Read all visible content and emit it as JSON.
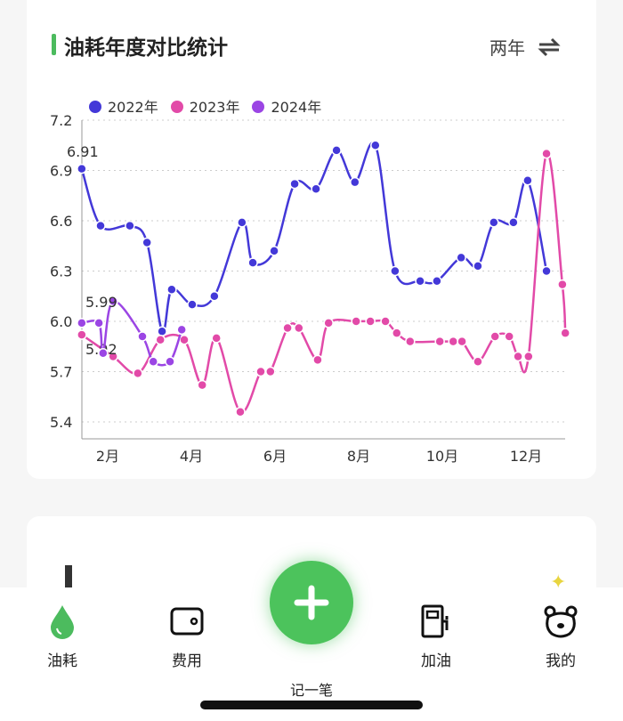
{
  "header": {
    "title": "油耗年度对比统计",
    "range_label": "两年",
    "swap_icon": "swap-icon"
  },
  "chart_data": {
    "type": "line",
    "title": "油耗年度对比统计",
    "xlabel": "",
    "ylabel": "",
    "ylim": [
      5.4,
      7.2
    ],
    "yticks": [
      "5.4",
      "5.7",
      "6.0",
      "6.3",
      "6.6",
      "6.9",
      "7.2"
    ],
    "xlim": [
      1.38,
      13.0
    ],
    "xticks": [
      {
        "m": 2,
        "label": "2月"
      },
      {
        "m": 4,
        "label": "4月"
      },
      {
        "m": 6,
        "label": "6月"
      },
      {
        "m": 8,
        "label": "8月"
      },
      {
        "m": 10,
        "label": "10月"
      },
      {
        "m": 12,
        "label": "12月"
      }
    ],
    "grid": true,
    "legend_position": "top-left",
    "series": [
      {
        "name": "2022年",
        "color": "#4338d8",
        "first_label": "6.91",
        "x": [
          1.38,
          1.83,
          2.53,
          2.94,
          3.3,
          3.53,
          4.02,
          4.55,
          5.21,
          5.47,
          5.98,
          6.47,
          6.98,
          7.47,
          7.91,
          8.4,
          8.87,
          9.47,
          9.87,
          10.45,
          10.85,
          11.23,
          11.7,
          12.04,
          12.49
        ],
        "y": [
          6.91,
          6.57,
          6.57,
          6.47,
          5.94,
          6.19,
          6.1,
          6.15,
          6.59,
          6.35,
          6.42,
          6.82,
          6.79,
          7.02,
          6.83,
          7.05,
          6.3,
          6.24,
          6.24,
          6.38,
          6.33,
          6.59,
          6.59,
          6.84,
          6.3
        ]
      },
      {
        "name": "2023年",
        "color": "#e24aa8",
        "first_label": "5.92",
        "x": [
          1.38,
          2.13,
          2.72,
          3.26,
          3.83,
          4.26,
          4.6,
          5.17,
          5.66,
          5.89,
          6.3,
          6.57,
          7.02,
          7.28,
          7.94,
          8.28,
          8.64,
          8.91,
          9.23,
          9.94,
          10.26,
          10.47,
          10.85,
          11.26,
          11.6,
          11.81,
          12.06,
          12.49,
          12.87,
          12.94
        ],
        "y": [
          5.92,
          5.79,
          5.69,
          5.89,
          5.89,
          5.62,
          5.9,
          5.46,
          5.7,
          5.7,
          5.96,
          5.96,
          5.77,
          5.99,
          6.0,
          6.0,
          6.0,
          5.93,
          5.88,
          5.88,
          5.88,
          5.88,
          5.76,
          5.91,
          5.91,
          5.79,
          5.79,
          7.0,
          6.22,
          5.93
        ]
      },
      {
        "name": "2024年",
        "color": "#9b45e4",
        "first_label": "5.99",
        "x": [
          1.38,
          1.79,
          1.89,
          2.13,
          2.83,
          3.09,
          3.49,
          3.77
        ],
        "y": [
          5.99,
          5.99,
          5.81,
          6.12,
          5.91,
          5.76,
          5.76,
          5.95
        ]
      }
    ]
  },
  "nav": {
    "items": [
      {
        "label": "油耗"
      },
      {
        "label": "费用"
      },
      {
        "label": "加油"
      },
      {
        "label": "我的"
      }
    ],
    "fab_label": "记一笔"
  }
}
